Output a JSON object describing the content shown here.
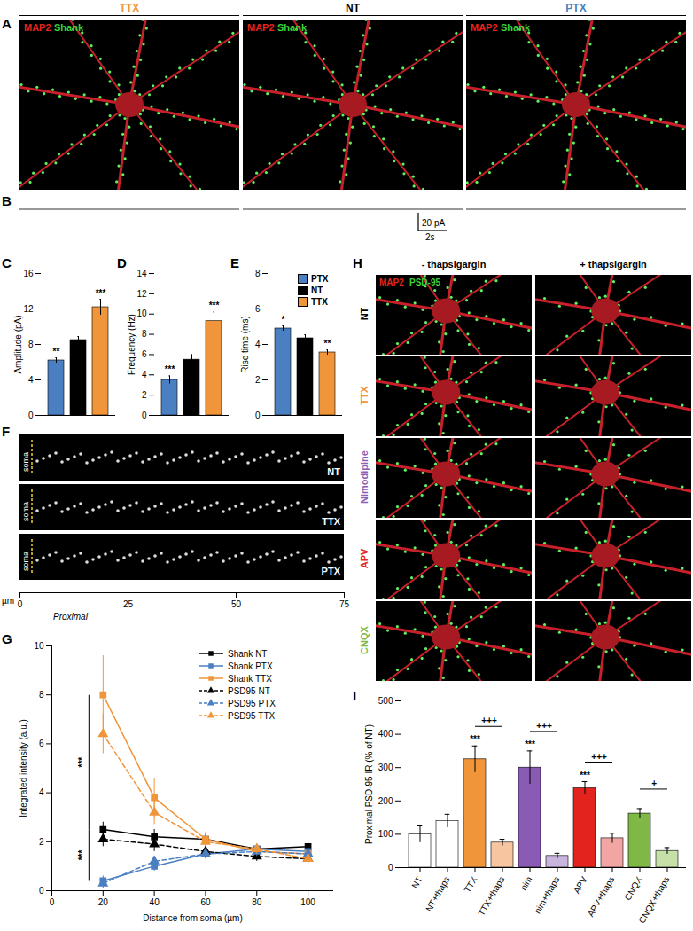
{
  "panel_labels": [
    "A",
    "B",
    "C",
    "D",
    "E",
    "F",
    "G",
    "H",
    "I"
  ],
  "panels": {
    "A": {
      "panel": "A",
      "columns": [
        {
          "title": "TTX",
          "color": "#f0953a"
        },
        {
          "title": "NT",
          "color": "#000000"
        },
        {
          "title": "PTX",
          "color": "#4a7fc1"
        }
      ],
      "stains": [
        {
          "text": "MAP2",
          "color": "#e3241e"
        },
        {
          "text": "Shank",
          "color": "#39d239"
        }
      ]
    },
    "B": {
      "panel": "B",
      "scale_bar": {
        "vertical": "20 pA",
        "horizontal": "2s"
      }
    },
    "F": {
      "panel": "F",
      "strips": [
        {
          "label": "NT"
        },
        {
          "label": "TTX"
        },
        {
          "label": "PTX"
        }
      ],
      "soma_label": "soma",
      "axis": {
        "label": "µm",
        "xlim": [
          0,
          75
        ],
        "xticks": [
          0,
          25,
          50,
          75
        ],
        "annotation": "Proximal"
      }
    },
    "H": {
      "panel": "H",
      "columns": [
        "- thapsigargin",
        "+ thapsigargin"
      ],
      "rows": [
        {
          "label": "NT",
          "color": "#000000"
        },
        {
          "label": "TTX",
          "color": "#f0953a"
        },
        {
          "label": "Nimodipine",
          "color": "#8a5bb5"
        },
        {
          "label": "APV",
          "color": "#e3241e"
        },
        {
          "label": "CNQX",
          "color": "#7fb847"
        }
      ],
      "stains": [
        {
          "text": "MAP2",
          "color": "#e3241e"
        },
        {
          "text": "PSD-95",
          "color": "#39d239"
        }
      ]
    }
  },
  "chart_data": [
    {
      "panel": "C",
      "type": "bar",
      "categories": [
        "PTX",
        "NT",
        "TTX"
      ],
      "values": [
        6.2,
        8.5,
        12.2
      ],
      "errors": [
        0.3,
        0.4,
        0.9
      ],
      "colors": [
        "#4a7fc1",
        "#000000",
        "#f0953a"
      ],
      "significance": [
        "**",
        null,
        "***"
      ],
      "ylabel": "Amplitude (pA)",
      "ylim": [
        0,
        16
      ],
      "yticks": [
        0,
        4,
        8,
        12,
        16
      ],
      "tick_labels": "y"
    },
    {
      "panel": "D",
      "type": "bar",
      "categories": [
        "PTX",
        "NT",
        "TTX"
      ],
      "values": [
        3.5,
        5.5,
        9.3
      ],
      "errors": [
        0.4,
        0.5,
        0.9
      ],
      "colors": [
        "#4a7fc1",
        "#000000",
        "#f0953a"
      ],
      "significance": [
        "***",
        null,
        "***"
      ],
      "ylabel": "Frequency (Hz)",
      "ylim": [
        0,
        14
      ],
      "yticks": [
        0,
        2,
        4,
        6,
        8,
        10,
        12,
        14
      ],
      "tick_labels": "y"
    },
    {
      "panel": "E",
      "type": "bar",
      "categories": [
        "PTX",
        "NT",
        "TTX"
      ],
      "values": [
        4.9,
        4.35,
        3.55
      ],
      "errors": [
        0.15,
        0.2,
        0.15
      ],
      "colors": [
        "#4a7fc1",
        "#000000",
        "#f0953a"
      ],
      "significance": [
        "*",
        null,
        "**"
      ],
      "ylabel": "Rise time (ms)",
      "ylim": [
        0,
        8
      ],
      "yticks": [
        0,
        2,
        4,
        6,
        8
      ],
      "tick_labels": "y",
      "legend": "top-right"
    },
    {
      "panel": "G",
      "type": "line",
      "xlabel": "Distance from soma (µm)",
      "ylabel": "Integrated intensity (a.u.)",
      "x": [
        20,
        40,
        60,
        80,
        100
      ],
      "xlim": [
        0,
        110
      ],
      "xticks": [
        0,
        20,
        40,
        60,
        80,
        100
      ],
      "ylim": [
        0,
        10
      ],
      "yticks": [
        0,
        2,
        4,
        6,
        8,
        10
      ],
      "legend": "top-right",
      "series": [
        {
          "name": "Shank NT",
          "color": "#000000",
          "marker": "square",
          "line_style": "solid",
          "values": [
            2.5,
            2.2,
            2.1,
            1.7,
            1.8
          ],
          "errors": [
            0.3,
            0.3,
            0.2,
            0.2,
            0.2
          ]
        },
        {
          "name": "Shank PTX",
          "color": "#4a7fc1",
          "marker": "square",
          "line_style": "solid",
          "values": [
            0.4,
            1.0,
            1.5,
            1.7,
            1.6
          ],
          "errors": [
            0.2,
            0.2,
            0.2,
            0.2,
            0.2
          ]
        },
        {
          "name": "Shank TTX",
          "color": "#f0953a",
          "marker": "square",
          "line_style": "solid",
          "values": [
            8.0,
            3.8,
            2.1,
            1.6,
            1.5
          ],
          "errors": [
            1.6,
            0.8,
            0.3,
            0.2,
            0.2
          ]
        },
        {
          "name": "PSD95 NT",
          "color": "#000000",
          "marker": "triangle",
          "line_style": "dashed",
          "values": [
            2.1,
            1.9,
            1.6,
            1.4,
            1.3
          ],
          "errors": [
            0.3,
            0.3,
            0.2,
            0.2,
            0.2
          ]
        },
        {
          "name": "PSD95 PTX",
          "color": "#4a7fc1",
          "marker": "triangle",
          "line_style": "dashed",
          "values": [
            0.3,
            1.2,
            1.5,
            1.6,
            1.5
          ],
          "errors": [
            0.2,
            0.2,
            0.2,
            0.2,
            0.2
          ]
        },
        {
          "name": "PSD95 TTX",
          "color": "#f0953a",
          "marker": "triangle",
          "line_style": "dashed",
          "values": [
            6.4,
            3.2,
            2.0,
            1.7,
            1.3
          ],
          "errors": [
            0.8,
            0.5,
            0.2,
            0.2,
            0.2
          ]
        }
      ],
      "brackets": [
        {
          "text": "***",
          "between": [
            "Shank TTX",
            "Shank NT"
          ]
        },
        {
          "text": "***",
          "between": [
            "Shank NT",
            "Shank PTX"
          ]
        }
      ]
    },
    {
      "panel": "I",
      "type": "bar",
      "categories": [
        "NT",
        "NT+thaps",
        "TTX",
        "TTX+thaps",
        "nim",
        "nim+thaps",
        "APV",
        "APV+thaps",
        "CNQX",
        "CNQX+thaps"
      ],
      "values": [
        100,
        140,
        325,
        75,
        300,
        35,
        238,
        88,
        162,
        50
      ],
      "errors": [
        25,
        20,
        40,
        10,
        50,
        8,
        20,
        15,
        15,
        10
      ],
      "colors": [
        "#ffffff",
        "#ffffff",
        "#f0953a",
        "#f7c6a0",
        "#8a5bb5",
        "#c9b4dd",
        "#e3241e",
        "#f1a6a4",
        "#7fb847",
        "#c6e0a8"
      ],
      "significance": [
        null,
        null,
        "***",
        null,
        "***",
        null,
        "***",
        null,
        null,
        null
      ],
      "brackets": [
        {
          "text": "+++",
          "between": [
            "TTX",
            "TTX+thaps"
          ]
        },
        {
          "text": "+++",
          "between": [
            "nim",
            "nim+thaps"
          ]
        },
        {
          "text": "+++",
          "between": [
            "APV",
            "APV+thaps"
          ]
        },
        {
          "text": "+",
          "between": [
            "CNQX",
            "CNQX+thaps"
          ]
        }
      ],
      "ylabel": "Proximal PSD-95 IR (% of NT)",
      "ylim": [
        0,
        500
      ],
      "yticks": [
        0,
        100,
        200,
        300,
        400,
        500
      ]
    }
  ]
}
